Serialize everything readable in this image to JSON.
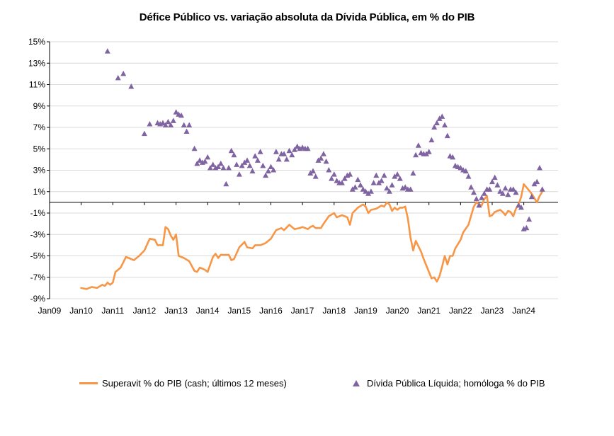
{
  "colors": {
    "surplus_line": "#f79646",
    "debt_marker": "#8064a2",
    "grid": "#d9d9d9",
    "axis": "#000000"
  },
  "chart_data": {
    "type": "line",
    "title": "Défice Público vs. variação absoluta da Dívida Pública, em % do PIB",
    "xlabel": "",
    "ylabel": "",
    "xlim": [
      "2009-01",
      "2025-02"
    ],
    "ylim": [
      -9,
      15
    ],
    "y_ticks": [
      15,
      13,
      11,
      9,
      7,
      5,
      3,
      1,
      -1,
      -3,
      -5,
      -7,
      -9
    ],
    "y_tick_labels": [
      "15%",
      "13%",
      "11%",
      "9%",
      "7%",
      "5%",
      "3%",
      "1%",
      "-1%",
      "-3%",
      "-5%",
      "-7%",
      "-9%"
    ],
    "x_ticks": [
      "2009-01",
      "2010-01",
      "2011-01",
      "2012-01",
      "2013-01",
      "2014-01",
      "2015-01",
      "2016-01",
      "2017-01",
      "2018-01",
      "2019-01",
      "2020-01",
      "2021-01",
      "2022-01",
      "2023-01",
      "2024-01"
    ],
    "x_tick_labels": [
      "Jan09",
      "Jan10",
      "Jan11",
      "Jan12",
      "Jan13",
      "Jan14",
      "Jan15",
      "Jan16",
      "Jan17",
      "Jan18",
      "Jan19",
      "Jan20",
      "Jan21",
      "Jan22",
      "Jan23",
      "Jan24"
    ],
    "grid": "horizontal",
    "legend_position": "bottom",
    "series": [
      {
        "name": "Superavit % do PIB (cash; últimos 12 meses)",
        "kind": "line",
        "points": [
          [
            "2010-01",
            -8.0
          ],
          [
            "2010-03",
            -8.1
          ],
          [
            "2010-05",
            -7.9
          ],
          [
            "2010-07",
            -8.0
          ],
          [
            "2010-09",
            -7.7
          ],
          [
            "2010-10",
            -7.8
          ],
          [
            "2010-11",
            -7.5
          ],
          [
            "2010-12",
            -7.7
          ],
          [
            "2011-01",
            -7.5
          ],
          [
            "2011-02",
            -6.5
          ],
          [
            "2011-04",
            -6.1
          ],
          [
            "2011-06",
            -5.1
          ],
          [
            "2011-08",
            -5.3
          ],
          [
            "2011-09",
            -5.4
          ],
          [
            "2011-11",
            -5.0
          ],
          [
            "2012-01",
            -4.5
          ],
          [
            "2012-03",
            -3.4
          ],
          [
            "2012-05",
            -3.5
          ],
          [
            "2012-06",
            -4.0
          ],
          [
            "2012-08",
            -4.0
          ],
          [
            "2012-09",
            -2.3
          ],
          [
            "2012-10",
            -2.5
          ],
          [
            "2012-11",
            -3.1
          ],
          [
            "2012-12",
            -3.5
          ],
          [
            "2013-01",
            -3.0
          ],
          [
            "2013-02",
            -5.0
          ],
          [
            "2013-04",
            -5.2
          ],
          [
            "2013-06",
            -5.5
          ],
          [
            "2013-08",
            -6.4
          ],
          [
            "2013-09",
            -6.5
          ],
          [
            "2013-10",
            -6.1
          ],
          [
            "2013-12",
            -6.3
          ],
          [
            "2014-01",
            -6.5
          ],
          [
            "2014-03",
            -5.1
          ],
          [
            "2014-04",
            -4.8
          ],
          [
            "2014-05",
            -5.2
          ],
          [
            "2014-06",
            -4.9
          ],
          [
            "2014-07",
            -4.9
          ],
          [
            "2014-09",
            -4.9
          ],
          [
            "2014-10",
            -5.4
          ],
          [
            "2014-11",
            -5.3
          ],
          [
            "2015-01",
            -4.2
          ],
          [
            "2015-03",
            -3.7
          ],
          [
            "2015-04",
            -4.2
          ],
          [
            "2015-06",
            -4.3
          ],
          [
            "2015-07",
            -4.0
          ],
          [
            "2015-09",
            -4.0
          ],
          [
            "2015-11",
            -3.8
          ],
          [
            "2016-01",
            -3.4
          ],
          [
            "2016-03",
            -2.6
          ],
          [
            "2016-05",
            -2.4
          ],
          [
            "2016-06",
            -2.6
          ],
          [
            "2016-08",
            -2.1
          ],
          [
            "2016-09",
            -2.3
          ],
          [
            "2016-10",
            -2.5
          ],
          [
            "2016-12",
            -2.4
          ],
          [
            "2017-01",
            -2.3
          ],
          [
            "2017-03",
            -2.5
          ],
          [
            "2017-04",
            -2.3
          ],
          [
            "2017-05",
            -2.2
          ],
          [
            "2017-06",
            -2.4
          ],
          [
            "2017-08",
            -2.4
          ],
          [
            "2017-09",
            -2.0
          ],
          [
            "2017-11",
            -1.3
          ],
          [
            "2018-01",
            -1.0
          ],
          [
            "2018-02",
            -1.4
          ],
          [
            "2018-04",
            -1.2
          ],
          [
            "2018-05",
            -1.3
          ],
          [
            "2018-06",
            -1.4
          ],
          [
            "2018-07",
            -2.1
          ],
          [
            "2018-08",
            -1.0
          ],
          [
            "2018-10",
            -0.5
          ],
          [
            "2018-12",
            -0.2
          ],
          [
            "2019-01",
            -0.4
          ],
          [
            "2019-02",
            -1.0
          ],
          [
            "2019-03",
            -0.7
          ],
          [
            "2019-05",
            -0.6
          ],
          [
            "2019-07",
            -0.3
          ],
          [
            "2019-08",
            -0.4
          ],
          [
            "2019-09",
            0.0
          ],
          [
            "2019-10",
            -0.2
          ],
          [
            "2019-11",
            -0.8
          ],
          [
            "2019-12",
            -0.5
          ],
          [
            "2020-01",
            -0.7
          ],
          [
            "2020-02",
            -0.5
          ],
          [
            "2020-03",
            -0.5
          ],
          [
            "2020-04",
            -0.4
          ],
          [
            "2020-05",
            -1.5
          ],
          [
            "2020-06",
            -3.3
          ],
          [
            "2020-07",
            -4.5
          ],
          [
            "2020-08",
            -3.6
          ],
          [
            "2020-10",
            -4.6
          ],
          [
            "2020-11",
            -5.3
          ],
          [
            "2021-01",
            -6.5
          ],
          [
            "2021-02",
            -7.1
          ],
          [
            "2021-03",
            -7.0
          ],
          [
            "2021-04",
            -7.4
          ],
          [
            "2021-05",
            -6.9
          ],
          [
            "2021-06",
            -6.0
          ],
          [
            "2021-07",
            -5.0
          ],
          [
            "2021-08",
            -5.8
          ],
          [
            "2021-09",
            -5.0
          ],
          [
            "2021-10",
            -5.0
          ],
          [
            "2021-11",
            -4.3
          ],
          [
            "2022-01",
            -3.5
          ],
          [
            "2022-02",
            -2.8
          ],
          [
            "2022-04",
            -2.1
          ],
          [
            "2022-06",
            -0.4
          ],
          [
            "2022-07",
            0.0
          ],
          [
            "2022-09",
            -0.3
          ],
          [
            "2022-10",
            0.3
          ],
          [
            "2022-11",
            0.6
          ],
          [
            "2022-12",
            -1.3
          ],
          [
            "2023-01",
            -1.2
          ],
          [
            "2023-02",
            -0.9
          ],
          [
            "2023-04",
            -0.7
          ],
          [
            "2023-05",
            -0.9
          ],
          [
            "2023-06",
            -1.2
          ],
          [
            "2023-07",
            -0.8
          ],
          [
            "2023-08",
            -0.9
          ],
          [
            "2023-09",
            -1.3
          ],
          [
            "2023-10",
            -0.6
          ],
          [
            "2023-11",
            -0.2
          ],
          [
            "2023-12",
            0.5
          ],
          [
            "2024-01",
            1.7
          ],
          [
            "2024-02",
            1.4
          ],
          [
            "2024-03",
            1.1
          ],
          [
            "2024-04",
            0.8
          ],
          [
            "2024-05",
            0.4
          ],
          [
            "2024-06",
            0.0
          ],
          [
            "2024-07",
            0.6
          ],
          [
            "2024-08",
            1.0
          ]
        ]
      },
      {
        "name": "Dívida Pública Líquida; homóloga % do PIB",
        "kind": "scatter",
        "marker": "triangle",
        "points": [
          [
            "2010-11",
            14.1
          ],
          [
            "2011-03",
            11.6
          ],
          [
            "2011-05",
            12.0
          ],
          [
            "2011-08",
            10.8
          ],
          [
            "2012-01",
            6.4
          ],
          [
            "2012-03",
            7.3
          ],
          [
            "2012-06",
            7.4
          ],
          [
            "2012-07",
            7.3
          ],
          [
            "2012-08",
            7.4
          ],
          [
            "2012-09",
            7.2
          ],
          [
            "2012-10",
            7.5
          ],
          [
            "2012-11",
            7.2
          ],
          [
            "2012-12",
            7.6
          ],
          [
            "2013-01",
            8.4
          ],
          [
            "2013-02",
            8.2
          ],
          [
            "2013-03",
            8.1
          ],
          [
            "2013-04",
            7.2
          ],
          [
            "2013-05",
            6.6
          ],
          [
            "2013-06",
            7.2
          ],
          [
            "2013-08",
            5.0
          ],
          [
            "2013-09",
            3.6
          ],
          [
            "2013-10",
            3.9
          ],
          [
            "2013-11",
            3.7
          ],
          [
            "2013-12",
            3.8
          ],
          [
            "2014-01",
            4.2
          ],
          [
            "2014-02",
            3.2
          ],
          [
            "2014-03",
            3.5
          ],
          [
            "2014-04",
            3.2
          ],
          [
            "2014-05",
            3.3
          ],
          [
            "2014-06",
            3.6
          ],
          [
            "2014-07",
            3.2
          ],
          [
            "2014-08",
            1.7
          ],
          [
            "2014-09",
            3.2
          ],
          [
            "2014-10",
            4.8
          ],
          [
            "2014-11",
            4.4
          ],
          [
            "2014-12",
            3.5
          ],
          [
            "2015-01",
            2.6
          ],
          [
            "2015-02",
            3.4
          ],
          [
            "2015-03",
            3.7
          ],
          [
            "2015-04",
            3.9
          ],
          [
            "2015-05",
            3.4
          ],
          [
            "2015-06",
            2.9
          ],
          [
            "2015-07",
            4.3
          ],
          [
            "2015-08",
            3.9
          ],
          [
            "2015-09",
            4.7
          ],
          [
            "2015-10",
            3.4
          ],
          [
            "2015-11",
            2.5
          ],
          [
            "2015-12",
            2.9
          ],
          [
            "2016-01",
            3.3
          ],
          [
            "2016-02",
            3.0
          ],
          [
            "2016-03",
            4.7
          ],
          [
            "2016-04",
            4.0
          ],
          [
            "2016-05",
            4.5
          ],
          [
            "2016-06",
            4.5
          ],
          [
            "2016-07",
            4.0
          ],
          [
            "2016-08",
            4.8
          ],
          [
            "2016-09",
            4.4
          ],
          [
            "2016-10",
            4.9
          ],
          [
            "2016-11",
            5.2
          ],
          [
            "2016-12",
            5.0
          ],
          [
            "2017-01",
            5.1
          ],
          [
            "2017-02",
            5.0
          ],
          [
            "2017-03",
            5.0
          ],
          [
            "2017-04",
            2.7
          ],
          [
            "2017-05",
            2.9
          ],
          [
            "2017-06",
            2.4
          ],
          [
            "2017-07",
            3.9
          ],
          [
            "2017-08",
            4.1
          ],
          [
            "2017-09",
            4.5
          ],
          [
            "2017-10",
            3.8
          ],
          [
            "2017-11",
            3.0
          ],
          [
            "2017-12",
            2.2
          ],
          [
            "2018-01",
            2.6
          ],
          [
            "2018-02",
            2.0
          ],
          [
            "2018-03",
            1.8
          ],
          [
            "2018-04",
            1.8
          ],
          [
            "2018-05",
            2.2
          ],
          [
            "2018-06",
            2.5
          ],
          [
            "2018-07",
            2.6
          ],
          [
            "2018-08",
            1.2
          ],
          [
            "2018-09",
            1.4
          ],
          [
            "2018-10",
            2.1
          ],
          [
            "2018-11",
            1.6
          ],
          [
            "2018-12",
            1.2
          ],
          [
            "2019-01",
            1.0
          ],
          [
            "2019-02",
            0.8
          ],
          [
            "2019-03",
            1.0
          ],
          [
            "2019-04",
            1.8
          ],
          [
            "2019-05",
            2.5
          ],
          [
            "2019-06",
            1.8
          ],
          [
            "2019-07",
            2.0
          ],
          [
            "2019-08",
            2.5
          ],
          [
            "2019-09",
            1.3
          ],
          [
            "2019-10",
            1.0
          ],
          [
            "2019-11",
            1.6
          ],
          [
            "2019-12",
            2.4
          ],
          [
            "2020-01",
            2.6
          ],
          [
            "2020-02",
            2.2
          ],
          [
            "2020-03",
            1.3
          ],
          [
            "2020-04",
            1.4
          ],
          [
            "2020-05",
            1.2
          ],
          [
            "2020-06",
            1.2
          ],
          [
            "2020-07",
            2.7
          ],
          [
            "2020-08",
            4.4
          ],
          [
            "2020-09",
            5.3
          ],
          [
            "2020-10",
            4.6
          ],
          [
            "2020-11",
            4.5
          ],
          [
            "2020-12",
            4.5
          ],
          [
            "2021-01",
            4.7
          ],
          [
            "2021-02",
            5.8
          ],
          [
            "2021-03",
            7.0
          ],
          [
            "2021-04",
            7.4
          ],
          [
            "2021-05",
            7.8
          ],
          [
            "2021-06",
            8.0
          ],
          [
            "2021-07",
            7.2
          ],
          [
            "2021-08",
            6.2
          ],
          [
            "2021-09",
            4.3
          ],
          [
            "2021-10",
            4.2
          ],
          [
            "2021-11",
            3.4
          ],
          [
            "2021-12",
            3.3
          ],
          [
            "2022-01",
            3.2
          ],
          [
            "2022-02",
            3.0
          ],
          [
            "2022-03",
            2.9
          ],
          [
            "2022-04",
            2.4
          ],
          [
            "2022-05",
            1.4
          ],
          [
            "2022-06",
            0.9
          ],
          [
            "2022-07",
            0.3
          ],
          [
            "2022-08",
            -0.3
          ],
          [
            "2022-09",
            0.4
          ],
          [
            "2022-10",
            0.8
          ],
          [
            "2022-11",
            1.2
          ],
          [
            "2022-12",
            1.2
          ],
          [
            "2023-01",
            1.9
          ],
          [
            "2023-02",
            2.3
          ],
          [
            "2023-03",
            1.6
          ],
          [
            "2023-04",
            1.0
          ],
          [
            "2023-05",
            0.8
          ],
          [
            "2023-06",
            1.3
          ],
          [
            "2023-07",
            0.7
          ],
          [
            "2023-08",
            1.2
          ],
          [
            "2023-09",
            1.2
          ],
          [
            "2023-10",
            0.9
          ],
          [
            "2023-11",
            -0.3
          ],
          [
            "2023-12",
            -0.5
          ],
          [
            "2024-01",
            -2.5
          ],
          [
            "2024-02",
            -2.4
          ],
          [
            "2024-03",
            -1.6
          ],
          [
            "2024-04",
            0.5
          ],
          [
            "2024-05",
            1.7
          ],
          [
            "2024-06",
            1.9
          ],
          [
            "2024-07",
            3.2
          ],
          [
            "2024-08",
            1.2
          ]
        ]
      }
    ]
  }
}
